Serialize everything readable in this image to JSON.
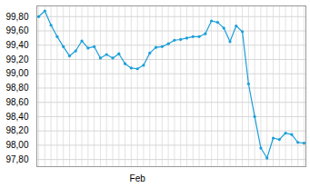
{
  "chart_data": {
    "type": "line",
    "categories": [
      null,
      null,
      null,
      null,
      null,
      null,
      null,
      null,
      null,
      null,
      null,
      null,
      null,
      null,
      null,
      null,
      "Feb",
      null,
      null,
      null,
      null,
      null,
      null,
      null,
      null,
      null,
      null,
      null,
      null,
      null,
      null,
      null,
      null,
      null,
      null,
      null,
      null,
      null,
      null,
      null,
      null,
      null,
      null,
      null
    ],
    "values": [
      99.8,
      99.88,
      99.68,
      99.52,
      99.38,
      99.25,
      99.32,
      99.46,
      99.36,
      99.38,
      99.22,
      99.27,
      99.22,
      99.28,
      99.14,
      99.08,
      99.07,
      99.12,
      99.29,
      99.37,
      99.38,
      99.42,
      99.47,
      99.48,
      99.5,
      99.52,
      99.52,
      99.56,
      99.74,
      99.72,
      99.64,
      99.45,
      99.67,
      99.59,
      98.86,
      98.4,
      97.96,
      97.82,
      98.1,
      98.08,
      98.17,
      98.15,
      98.04,
      98.03
    ],
    "color": "#1a9ed9",
    "marker": "circle",
    "ylim": [
      97.7,
      99.95
    ],
    "yticks": [
      {
        "value": 97.8,
        "label": "97,80"
      },
      {
        "value": 98.0,
        "label": "98,00"
      },
      {
        "value": 98.2,
        "label": "98,20"
      },
      {
        "value": 98.4,
        "label": "98,40"
      },
      {
        "value": 98.6,
        "label": "98,60"
      },
      {
        "value": 98.8,
        "label": "98,80"
      },
      {
        "value": 99.0,
        "label": "99,00"
      },
      {
        "value": 99.2,
        "label": "99,20"
      },
      {
        "value": 99.4,
        "label": "99,40"
      },
      {
        "value": 99.6,
        "label": "99,60"
      },
      {
        "value": 99.8,
        "label": "99,80"
      }
    ],
    "grid": true
  }
}
